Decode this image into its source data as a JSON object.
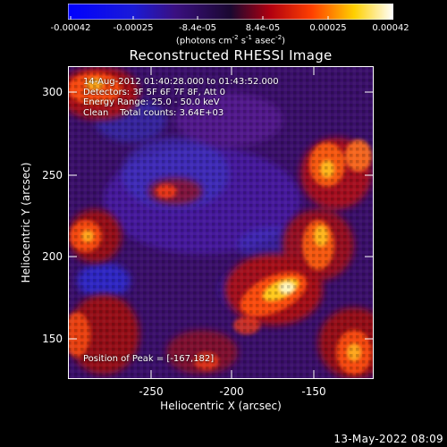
{
  "colorbar": {
    "tick_labels": [
      "-0.00042",
      "-0.00025",
      "-8.4e-05",
      "8.4e-05",
      "0.00025",
      "0.00042"
    ],
    "units_text": "(photons cm",
    "units_exp1": "-2",
    "units_mid1": " s",
    "units_exp2": "-1",
    "units_mid2": " asec",
    "units_exp3": "-2",
    "units_end": ")"
  },
  "title": "Reconstructed RHESSI Image",
  "info_lines": [
    "14-Aug-2012 01:40:28.000 to 01:43:52.000",
    "Detectors: 3F 5F 6F 7F 8F, Att 0",
    "Energy Range: 25.0 - 50.0 keV",
    "Clean    Total counts: 3.64E+03"
  ],
  "peak_text": "Position of Peak = [-167,182]",
  "x_axis": {
    "label": "Heliocentric X (arcsec)",
    "ticks": [
      "-250",
      "-200",
      "-150"
    ]
  },
  "y_axis": {
    "label": "Heliocentric Y (arcsec)",
    "ticks": [
      "300",
      "250",
      "200",
      "150"
    ]
  },
  "date_stamp": "13-May-2022 08:09",
  "colors": {
    "low": "#0000ff",
    "mid": "#4b0082",
    "high": "#ff0000",
    "peak": "#ffffff"
  }
}
